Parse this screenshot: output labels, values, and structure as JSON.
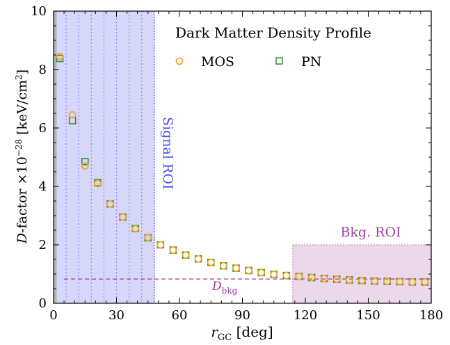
{
  "chart_data": {
    "type": "scatter",
    "title": "Dark Matter Density Profile",
    "xlabel": {
      "main": "r",
      "sub": "GC",
      "unit": " [deg]"
    },
    "ylabel": {
      "main": "D",
      "rest": "-factor ×10",
      "exp": "−28",
      "unit": " [keV/cm",
      "unit_exp": "2",
      "unit_close": "]"
    },
    "xlim": [
      0,
      180
    ],
    "ylim": [
      0,
      10
    ],
    "xticks": [
      0,
      30,
      60,
      90,
      120,
      150,
      180
    ],
    "yticks": [
      0,
      2,
      4,
      6,
      8,
      10
    ],
    "legend_position": "top-right",
    "series": [
      {
        "name": "MOS",
        "marker": "circle",
        "color": "#f5a623",
        "x": [
          3,
          9,
          15,
          21,
          27,
          33,
          39,
          45,
          51,
          57,
          63,
          69,
          75,
          81,
          87,
          93,
          99,
          105,
          111,
          117,
          123,
          129,
          135,
          141,
          147,
          153,
          159,
          165,
          171,
          177
        ],
        "y": [
          8.45,
          6.45,
          4.7,
          4.1,
          3.4,
          2.95,
          2.55,
          2.25,
          2.0,
          1.82,
          1.65,
          1.52,
          1.4,
          1.28,
          1.2,
          1.12,
          1.05,
          0.99,
          0.95,
          0.92,
          0.88,
          0.85,
          0.82,
          0.8,
          0.78,
          0.76,
          0.75,
          0.74,
          0.73,
          0.73
        ]
      },
      {
        "name": "PN",
        "marker": "square",
        "color": "#2e8b2e",
        "x": [
          3,
          9,
          15,
          21,
          27,
          33,
          39,
          45,
          51,
          57,
          63,
          69,
          75,
          81,
          87,
          93,
          99,
          105,
          111,
          117,
          123,
          129,
          135,
          141,
          147,
          153,
          159,
          165,
          171,
          177
        ],
        "y": [
          8.38,
          6.25,
          4.85,
          4.13,
          3.4,
          2.95,
          2.56,
          2.24,
          2.0,
          1.82,
          1.65,
          1.52,
          1.4,
          1.28,
          1.2,
          1.12,
          1.05,
          0.99,
          0.95,
          0.92,
          0.88,
          0.85,
          0.82,
          0.8,
          0.78,
          0.76,
          0.75,
          0.74,
          0.73,
          0.73
        ]
      }
    ],
    "regions": {
      "excluded": {
        "x": [
          0,
          1.5
        ],
        "color": "#b3b3b3"
      },
      "signal_roi": {
        "label": "Signal ROI",
        "x": [
          1.5,
          48
        ],
        "color": "#4a4aee",
        "ring_boundaries": [
          6,
          12,
          18,
          24,
          30,
          36,
          42
        ]
      },
      "bkg_roi": {
        "label": "Bkg. ROI",
        "x": [
          114,
          180
        ],
        "y": [
          0,
          2
        ],
        "color": "#9b3c9b"
      }
    },
    "background_level": {
      "label_main": "D",
      "label_sub": "bkg",
      "y": 0.83,
      "color": "#9b3c9b"
    }
  }
}
